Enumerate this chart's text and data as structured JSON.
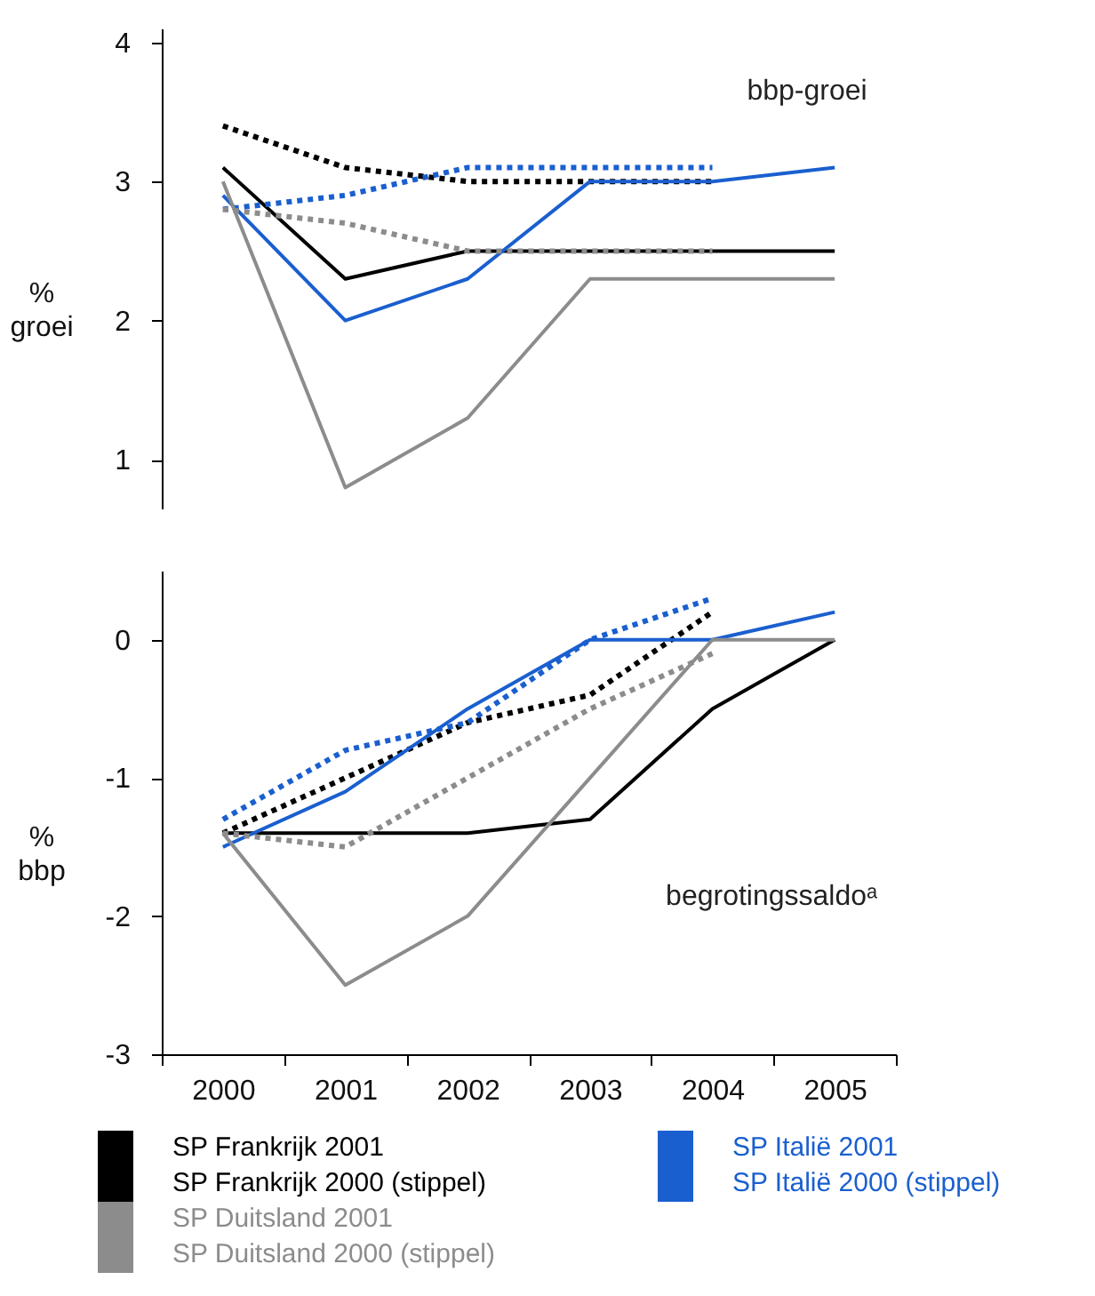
{
  "chart_data": [
    {
      "type": "line",
      "ylabel": "% groei",
      "categories": [
        "2000",
        "2001",
        "2002",
        "2003",
        "2004",
        "2005"
      ],
      "ylim": [
        0.65,
        4.1
      ],
      "yticks": [
        1,
        2,
        3,
        4
      ],
      "grid": false,
      "marker": "none",
      "tick_labels": "y",
      "legend": "bottom",
      "annotations": [
        "bbp-groei"
      ],
      "series": [
        {
          "name": "SP Frankrijk 2001",
          "color": "#000000",
          "line_style": "solid",
          "values": [
            3.1,
            2.3,
            2.5,
            2.5,
            2.5,
            2.5
          ]
        },
        {
          "name": "SP Frankrijk 2000 (stippel)",
          "color": "#000000",
          "line_style": "dotted",
          "values": [
            3.4,
            3.1,
            3.0,
            3.0,
            3.0,
            null
          ]
        },
        {
          "name": "SP Italië 2001",
          "color": "#1a5fcf",
          "line_style": "solid",
          "values": [
            2.9,
            2.0,
            2.3,
            3.0,
            3.0,
            3.1
          ]
        },
        {
          "name": "SP Italië 2000 (stippel)",
          "color": "#1a5fcf",
          "line_style": "dotted",
          "values": [
            2.8,
            2.9,
            3.1,
            3.1,
            3.1,
            null
          ]
        },
        {
          "name": "SP Duitsland 2001",
          "color": "#8c8c8c",
          "line_style": "solid",
          "values": [
            3.0,
            0.8,
            1.3,
            2.3,
            2.3,
            2.3
          ]
        },
        {
          "name": "SP Duitsland 2000 (stippel)",
          "color": "#8c8c8c",
          "line_style": "dotted",
          "values": [
            2.8,
            2.7,
            2.5,
            2.5,
            2.5,
            null
          ]
        }
      ]
    },
    {
      "type": "line",
      "ylabel": "% bbp",
      "categories": [
        "2000",
        "2001",
        "2002",
        "2003",
        "2004",
        "2005"
      ],
      "ylim": [
        -3,
        0.5
      ],
      "yticks": [
        -3,
        -2,
        -1,
        0
      ],
      "grid": false,
      "marker": "none",
      "annotations": [
        "begrotingssaldoᵃ"
      ],
      "series": [
        {
          "color": "#000000",
          "line_style": "solid",
          "values": [
            -1.4,
            -1.4,
            -1.4,
            -1.3,
            -0.5,
            0
          ]
        },
        {
          "color": "#000000",
          "line_style": "dotted",
          "values": [
            -1.4,
            -1.0,
            -0.6,
            -0.4,
            0.2,
            null
          ]
        },
        {
          "color": "#1a5fcf",
          "line_style": "solid",
          "values": [
            -1.5,
            -1.1,
            -0.5,
            0,
            0,
            0.2
          ]
        },
        {
          "color": "#1a5fcf",
          "line_style": "dotted",
          "values": [
            -1.3,
            -0.8,
            -0.6,
            0,
            0.3,
            null
          ]
        },
        {
          "color": "#8c8c8c",
          "line_style": "solid",
          "values": [
            -1.4,
            -2.5,
            -2.0,
            -1.0,
            0,
            0
          ]
        },
        {
          "color": "#8c8c8c",
          "line_style": "dotted",
          "values": [
            -1.4,
            -1.5,
            -1.0,
            -0.5,
            -0.1,
            null
          ]
        }
      ]
    }
  ]
}
